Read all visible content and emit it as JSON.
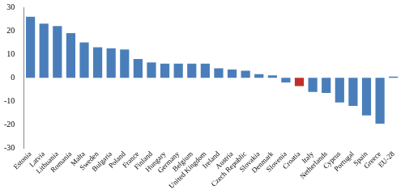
{
  "chart_data": {
    "type": "bar",
    "categories": [
      "Estonia",
      "Latvia",
      "Lithuania",
      "Romania",
      "Malta",
      "Sweden",
      "Bulgaria",
      "Poland",
      "France",
      "Finland",
      "Hungary",
      "Germany",
      "Belgium",
      "United Kingdom",
      "Ireland",
      "Austria",
      "Czech Republic",
      "Slovakia",
      "Denmark",
      "Slovenia",
      "Croatia",
      "Italy",
      "Netherlands",
      "Cyprus",
      "Portugal",
      "Spain",
      "Greece",
      "EU-28"
    ],
    "values": [
      26,
      23,
      22,
      19,
      15,
      13,
      12.5,
      12,
      8,
      6.5,
      6,
      6,
      6,
      6,
      4,
      3.5,
      3,
      1.5,
      1,
      -2,
      -3.5,
      -6,
      -6.5,
      -10.5,
      -12,
      -16,
      -19.5,
      0.5
    ],
    "colors": [
      "#4a7ebb",
      "#4a7ebb",
      "#4a7ebb",
      "#4a7ebb",
      "#4a7ebb",
      "#4a7ebb",
      "#4a7ebb",
      "#4a7ebb",
      "#4a7ebb",
      "#4a7ebb",
      "#4a7ebb",
      "#4a7ebb",
      "#4a7ebb",
      "#4a7ebb",
      "#4a7ebb",
      "#4a7ebb",
      "#4a7ebb",
      "#4a7ebb",
      "#4a7ebb",
      "#4a7ebb",
      "#c0302a",
      "#4a7ebb",
      "#4a7ebb",
      "#4a7ebb",
      "#4a7ebb",
      "#4a7ebb",
      "#4a7ebb",
      "#4a7ebb"
    ],
    "ylim": [
      -30,
      30
    ],
    "yticks": [
      -30,
      -20,
      -10,
      0,
      10,
      20,
      30
    ],
    "grid": false
  }
}
